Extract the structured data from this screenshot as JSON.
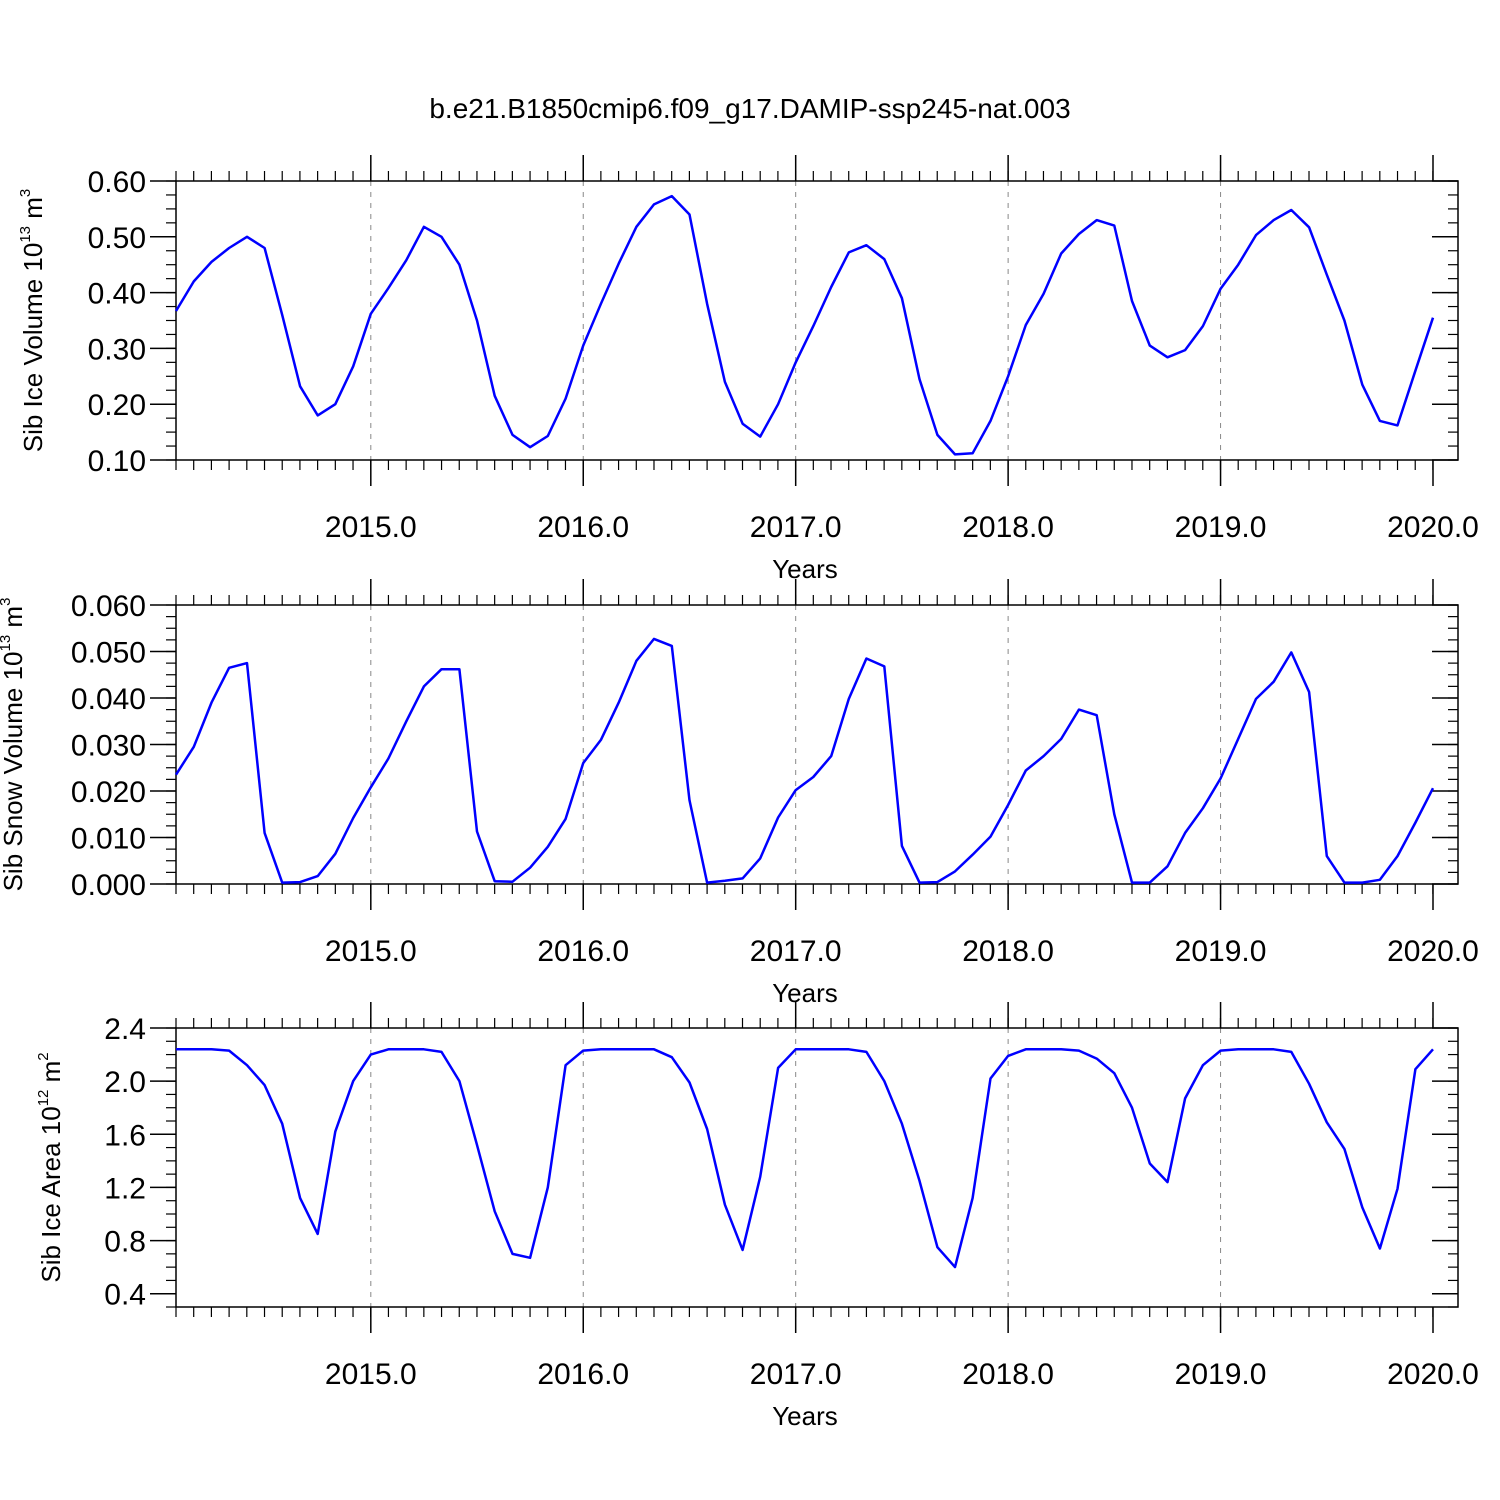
{
  "title": "b.e21.B1850cmip6.f09_g17.DAMIP-ssp245-nat.003",
  "line_color": "#0000ff",
  "chart_data": [
    {
      "type": "line",
      "xlabel": "Years",
      "ylabel": {
        "pre": "Sib Ice Volume 10",
        "exp": "13",
        "mid": " m",
        "unit_exp": "3"
      },
      "xlim": [
        2014.083,
        2020.0
      ],
      "ylim": [
        0.1,
        0.6
      ],
      "yticks": [
        "0.10",
        "0.20",
        "0.30",
        "0.40",
        "0.50",
        "0.60"
      ],
      "ytick_values": [
        0.1,
        0.2,
        0.3,
        0.4,
        0.5,
        0.6
      ],
      "xticks": [
        "2015.0",
        "2016.0",
        "2017.0",
        "2018.0",
        "2019.0",
        "2020.0"
      ],
      "xtick_values": [
        2015,
        2016,
        2017,
        2018,
        2019,
        2020
      ],
      "grid": "vertical dashed at years",
      "x": [
        2014.083,
        2014.167,
        2014.25,
        2014.333,
        2014.417,
        2014.5,
        2014.583,
        2014.667,
        2014.75,
        2014.833,
        2014.917,
        2015.0,
        2015.083,
        2015.167,
        2015.25,
        2015.333,
        2015.417,
        2015.5,
        2015.583,
        2015.667,
        2015.75,
        2015.833,
        2015.917,
        2016.0,
        2016.083,
        2016.167,
        2016.25,
        2016.333,
        2016.417,
        2016.5,
        2016.583,
        2016.667,
        2016.75,
        2016.833,
        2016.917,
        2017.0,
        2017.083,
        2017.167,
        2017.25,
        2017.333,
        2017.417,
        2017.5,
        2017.583,
        2017.667,
        2017.75,
        2017.833,
        2017.917,
        2018.0,
        2018.083,
        2018.167,
        2018.25,
        2018.333,
        2018.417,
        2018.5,
        2018.583,
        2018.667,
        2018.75,
        2018.833,
        2018.917,
        2019.0,
        2019.083,
        2019.167,
        2019.25,
        2019.333,
        2019.417,
        2019.5,
        2019.583,
        2019.667,
        2019.75,
        2019.833,
        2019.917,
        2020.0
      ],
      "series": [
        {
          "values": [
            0.367,
            0.42,
            0.455,
            0.48,
            0.5,
            0.48,
            0.36,
            0.232,
            0.18,
            0.2,
            0.268,
            0.362,
            0.408,
            0.458,
            0.518,
            0.5,
            0.45,
            0.35,
            0.215,
            0.145,
            0.123,
            0.143,
            0.21,
            0.305,
            0.38,
            0.452,
            0.518,
            0.558,
            0.573,
            0.54,
            0.38,
            0.24,
            0.165,
            0.142,
            0.2,
            0.275,
            0.34,
            0.41,
            0.472,
            0.485,
            0.46,
            0.39,
            0.245,
            0.145,
            0.11,
            0.112,
            0.17,
            0.25,
            0.342,
            0.398,
            0.47,
            0.505,
            0.53,
            0.52,
            0.385,
            0.305,
            0.284,
            0.297,
            0.34,
            0.407,
            0.45,
            0.503,
            0.53,
            0.548,
            0.517,
            0.432,
            0.35,
            0.235,
            0.17,
            0.162,
            0.26,
            0.355
          ]
        }
      ]
    },
    {
      "type": "line",
      "xlabel": "Years",
      "ylabel": {
        "pre": "Sib Snow Volume 10",
        "exp": "13",
        "mid": " m",
        "unit_exp": "3"
      },
      "xlim": [
        2014.083,
        2020.0
      ],
      "ylim": [
        0.0,
        0.06
      ],
      "yticks": [
        "0.000",
        "0.010",
        "0.020",
        "0.030",
        "0.040",
        "0.050",
        "0.060"
      ],
      "ytick_values": [
        0.0,
        0.01,
        0.02,
        0.03,
        0.04,
        0.05,
        0.06
      ],
      "xticks": [
        "2015.0",
        "2016.0",
        "2017.0",
        "2018.0",
        "2019.0",
        "2020.0"
      ],
      "xtick_values": [
        2015,
        2016,
        2017,
        2018,
        2019,
        2020
      ],
      "grid": "vertical dashed at years",
      "x": [
        2014.083,
        2014.167,
        2014.25,
        2014.333,
        2014.417,
        2014.5,
        2014.583,
        2014.667,
        2014.75,
        2014.833,
        2014.917,
        2015.0,
        2015.083,
        2015.167,
        2015.25,
        2015.333,
        2015.417,
        2015.5,
        2015.583,
        2015.667,
        2015.75,
        2015.833,
        2015.917,
        2016.0,
        2016.083,
        2016.167,
        2016.25,
        2016.333,
        2016.417,
        2016.5,
        2016.583,
        2016.667,
        2016.75,
        2016.833,
        2016.917,
        2017.0,
        2017.083,
        2017.167,
        2017.25,
        2017.333,
        2017.417,
        2017.5,
        2017.583,
        2017.667,
        2017.75,
        2017.833,
        2017.917,
        2018.0,
        2018.083,
        2018.167,
        2018.25,
        2018.333,
        2018.417,
        2018.5,
        2018.583,
        2018.667,
        2018.75,
        2018.833,
        2018.917,
        2019.0,
        2019.083,
        2019.167,
        2019.25,
        2019.333,
        2019.417,
        2019.5,
        2019.583,
        2019.667,
        2019.75,
        2019.833,
        2019.917,
        2020.0
      ],
      "series": [
        {
          "values": [
            0.0235,
            0.0295,
            0.039,
            0.0465,
            0.0475,
            0.011,
            0.0003,
            0.0004,
            0.0017,
            0.0065,
            0.0142,
            0.0208,
            0.027,
            0.035,
            0.0425,
            0.0462,
            0.0462,
            0.0113,
            0.0006,
            0.0005,
            0.0035,
            0.008,
            0.014,
            0.026,
            0.031,
            0.039,
            0.048,
            0.0527,
            0.0512,
            0.018,
            0.0003,
            0.0007,
            0.0012,
            0.0055,
            0.0143,
            0.0202,
            0.023,
            0.0275,
            0.0398,
            0.0485,
            0.0468,
            0.0082,
            0.0003,
            0.0004,
            0.0027,
            0.0063,
            0.0102,
            0.017,
            0.0244,
            0.0275,
            0.0312,
            0.0375,
            0.0363,
            0.015,
            0.0003,
            0.0003,
            0.0038,
            0.011,
            0.0163,
            0.0227,
            0.0312,
            0.0398,
            0.0435,
            0.0498,
            0.0413,
            0.006,
            0.0003,
            0.0003,
            0.0009,
            0.006,
            0.0132,
            0.0206
          ]
        }
      ]
    },
    {
      "type": "line",
      "xlabel": "Years",
      "ylabel": {
        "pre": "Sib Ice Area 10",
        "exp": "12",
        "mid": " m",
        "unit_exp": "2"
      },
      "xlim": [
        2014.083,
        2020.0
      ],
      "ylim": [
        0.3,
        2.4
      ],
      "yticks": [
        "0.4",
        "0.8",
        "1.2",
        "1.6",
        "2.0",
        "2.4"
      ],
      "ytick_values": [
        0.4,
        0.8,
        1.2,
        1.6,
        2.0,
        2.4
      ],
      "xticks": [
        "2015.0",
        "2016.0",
        "2017.0",
        "2018.0",
        "2019.0",
        "2020.0"
      ],
      "xtick_values": [
        2015,
        2016,
        2017,
        2018,
        2019,
        2020
      ],
      "grid": "vertical dashed at years",
      "x": [
        2014.083,
        2014.167,
        2014.25,
        2014.333,
        2014.417,
        2014.5,
        2014.583,
        2014.667,
        2014.75,
        2014.833,
        2014.917,
        2015.0,
        2015.083,
        2015.167,
        2015.25,
        2015.333,
        2015.417,
        2015.5,
        2015.583,
        2015.667,
        2015.75,
        2015.833,
        2015.917,
        2016.0,
        2016.083,
        2016.167,
        2016.25,
        2016.333,
        2016.417,
        2016.5,
        2016.583,
        2016.667,
        2016.75,
        2016.833,
        2016.917,
        2017.0,
        2017.083,
        2017.167,
        2017.25,
        2017.333,
        2017.417,
        2017.5,
        2017.583,
        2017.667,
        2017.75,
        2017.833,
        2017.917,
        2018.0,
        2018.083,
        2018.167,
        2018.25,
        2018.333,
        2018.417,
        2018.5,
        2018.583,
        2018.667,
        2018.75,
        2018.833,
        2018.917,
        2019.0,
        2019.083,
        2019.167,
        2019.25,
        2019.333,
        2019.417,
        2019.5,
        2019.583,
        2019.667,
        2019.75,
        2019.833,
        2019.917,
        2020.0
      ],
      "series": [
        {
          "values": [
            2.24,
            2.24,
            2.24,
            2.23,
            2.12,
            1.97,
            1.68,
            1.12,
            0.85,
            1.62,
            2.0,
            2.2,
            2.24,
            2.24,
            2.24,
            2.22,
            2.0,
            1.52,
            1.02,
            0.7,
            0.67,
            1.2,
            2.12,
            2.23,
            2.24,
            2.24,
            2.24,
            2.24,
            2.18,
            1.99,
            1.64,
            1.07,
            0.73,
            1.28,
            2.1,
            2.24,
            2.24,
            2.24,
            2.24,
            2.22,
            2.0,
            1.68,
            1.25,
            0.75,
            0.6,
            1.12,
            2.02,
            2.19,
            2.24,
            2.24,
            2.24,
            2.23,
            2.17,
            2.06,
            1.8,
            1.38,
            1.24,
            1.87,
            2.12,
            2.23,
            2.24,
            2.24,
            2.24,
            2.22,
            1.98,
            1.69,
            1.49,
            1.05,
            0.74,
            1.19,
            2.09,
            2.24
          ]
        }
      ]
    }
  ]
}
